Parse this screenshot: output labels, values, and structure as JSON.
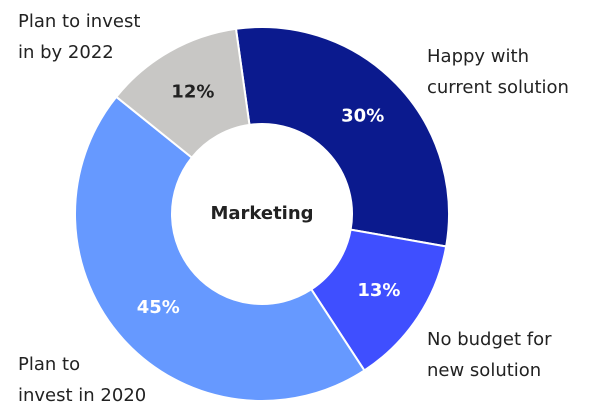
{
  "chart_data": {
    "type": "donut",
    "center_label": "Marketing",
    "categories": [
      [
        "Happy with",
        "current solution"
      ],
      [
        "No budget for",
        "new solution"
      ],
      [
        "Plan to",
        "invest in 2020"
      ],
      [
        "Plan to invest",
        "in by 2022"
      ]
    ],
    "values": [
      30,
      13,
      45,
      12
    ],
    "value_labels": [
      "30%",
      "13%",
      "45%",
      "12%"
    ],
    "colors": [
      "#0b1a8e",
      "#3f4fff",
      "#6699ff",
      "#c8c7c5"
    ]
  }
}
